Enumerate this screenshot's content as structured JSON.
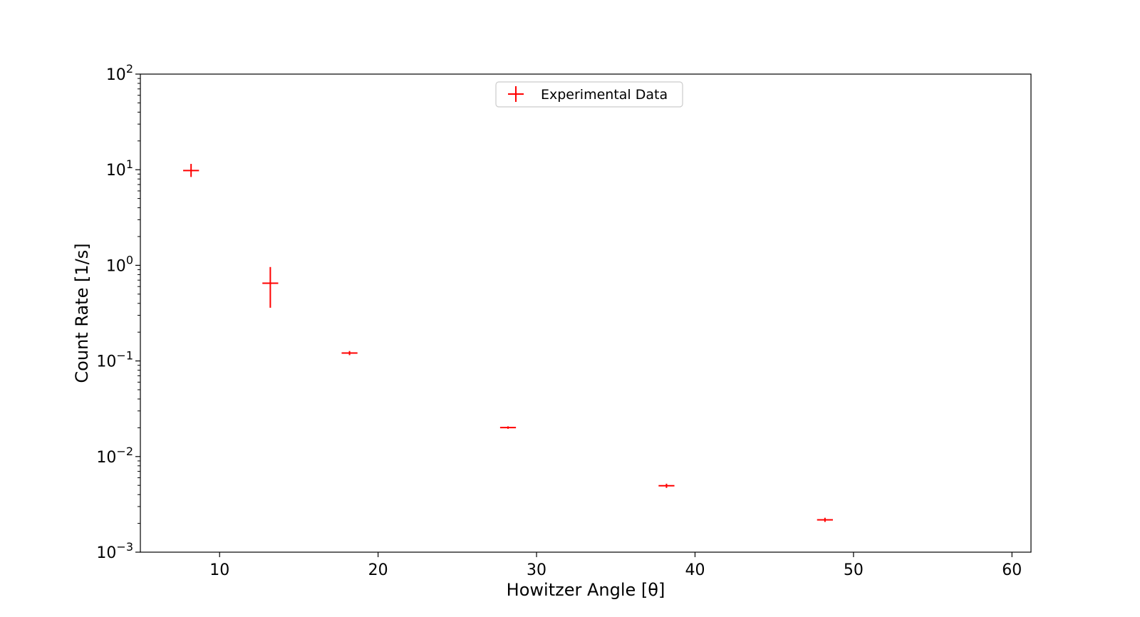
{
  "chart_data": {
    "type": "scatter",
    "title": "",
    "xlabel": "Howitzer Angle [θ]",
    "ylabel": "Count Rate [1/s]",
    "xlim": [
      5,
      61.2
    ],
    "ylim": [
      0.001,
      100
    ],
    "yscale": "log",
    "x_ticks": [
      10,
      20,
      30,
      40,
      50,
      60
    ],
    "y_tick_exponents": [
      2,
      1,
      0,
      -1,
      -2,
      -3
    ],
    "y_tick_base": "10",
    "grid": false,
    "legend_position": "top-center",
    "series": [
      {
        "name": "Experimental Data",
        "color": "#ff0000",
        "marker": "cross-errorbar",
        "points": [
          {
            "x": 8.2,
            "y": 9.8,
            "xerr": 0.5,
            "yerr_low": 8.4,
            "yerr_high": 11.5
          },
          {
            "x": 13.2,
            "y": 0.65,
            "xerr": 0.5,
            "yerr_low": 0.36,
            "yerr_high": 0.96
          },
          {
            "x": 18.2,
            "y": 0.121,
            "xerr": 0.5,
            "yerr_low": 0.115,
            "yerr_high": 0.127
          },
          {
            "x": 28.2,
            "y": 0.0201,
            "xerr": 0.5,
            "yerr_low": 0.0195,
            "yerr_high": 0.0207
          },
          {
            "x": 38.2,
            "y": 0.00495,
            "xerr": 0.5,
            "yerr_low": 0.0047,
            "yerr_high": 0.0052
          },
          {
            "x": 48.2,
            "y": 0.00218,
            "xerr": 0.5,
            "yerr_low": 0.00207,
            "yerr_high": 0.00229
          }
        ]
      }
    ]
  }
}
